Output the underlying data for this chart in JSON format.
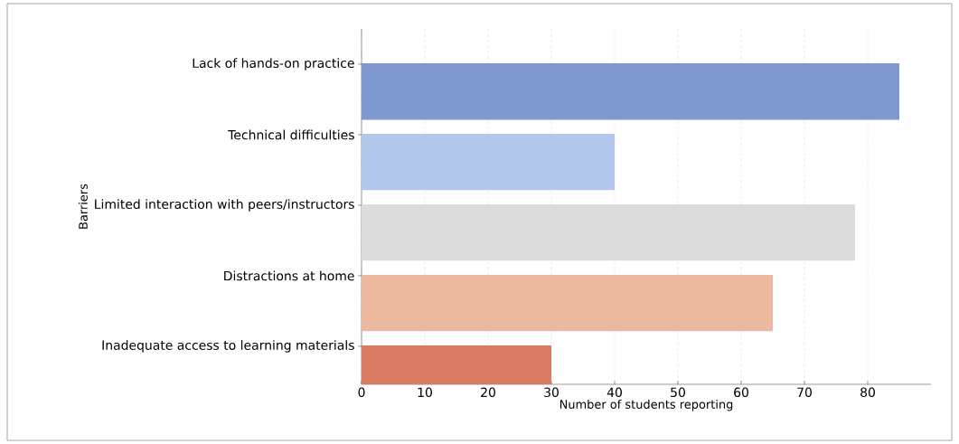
{
  "chart_data": {
    "type": "bar",
    "orientation": "horizontal",
    "xlabel": "Number of students reporting",
    "ylabel": "Barriers",
    "categories": [
      "Lack of hands-on practice",
      "Technical difficulties",
      "Limited interaction with peers/instructors",
      "Distractions at home",
      "Inadequate access to learning materials"
    ],
    "values": [
      85,
      40,
      78,
      65,
      30
    ],
    "colors": [
      "#8098d0",
      "#b3c8ec",
      "#dcdcdc",
      "#ecb8a0",
      "#d97a64"
    ],
    "xlim": [
      0,
      90
    ],
    "xticks": [
      0,
      10,
      20,
      30,
      40,
      50,
      60,
      70,
      80
    ],
    "grid": "x"
  }
}
